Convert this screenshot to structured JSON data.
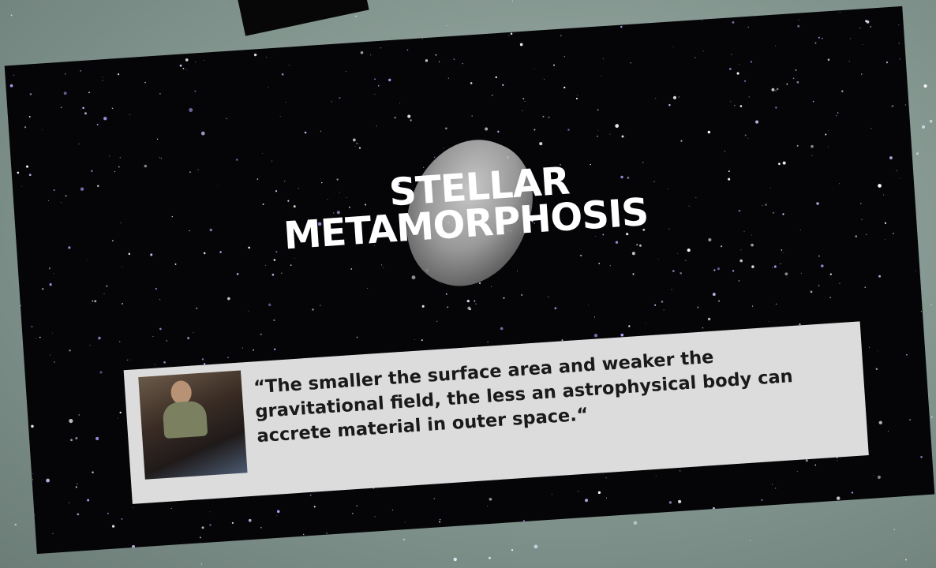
{
  "title": {
    "lines": [
      "STELLAR",
      "METAMORPHOSIS"
    ]
  },
  "quote": {
    "lines": [
      "“The smaller the surface area and weaker the",
      "gravitational field, the less an astrophysical body can",
      "accrete material in outer space.“"
    ]
  }
}
